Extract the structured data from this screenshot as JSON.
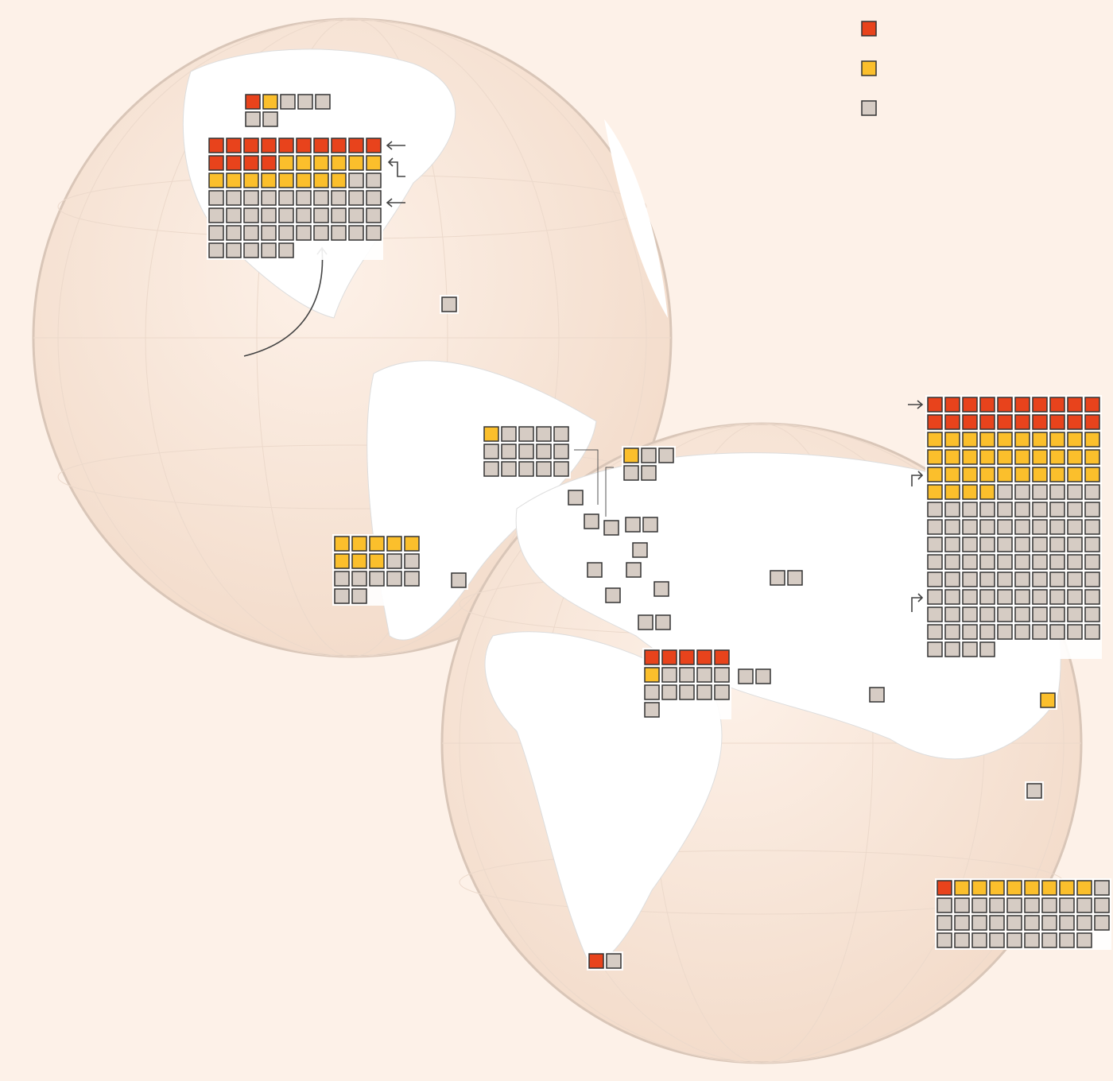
{
  "colors": {
    "red": "#e8431c",
    "yellow": "#fbbf2c",
    "gray": "#d6ccc4"
  },
  "groups": [
    {
      "red": 1,
      "yellow": 1,
      "gray": 5
    },
    {
      "red": 14,
      "yellow": 14,
      "gray": 37
    },
    {
      "red": 0,
      "yellow": 0,
      "gray": 1
    },
    {
      "red": 0,
      "yellow": 1,
      "gray": 14
    },
    {
      "red": 0,
      "yellow": 8,
      "gray": 9
    },
    {
      "red": 0,
      "yellow": 0,
      "gray": 1
    },
    {
      "red": 0,
      "yellow": 1,
      "gray": 4
    },
    {
      "red": 0,
      "yellow": 0,
      "gray": 1
    },
    {
      "red": 0,
      "yellow": 0,
      "gray": 1
    },
    {
      "red": 0,
      "yellow": 0,
      "gray": 1
    },
    {
      "red": 0,
      "yellow": 0,
      "gray": 2
    },
    {
      "red": 0,
      "yellow": 0,
      "gray": 1
    },
    {
      "red": 0,
      "yellow": 0,
      "gray": 1
    },
    {
      "red": 0,
      "yellow": 0,
      "gray": 1
    },
    {
      "red": 0,
      "yellow": 0,
      "gray": 1
    },
    {
      "red": 0,
      "yellow": 0,
      "gray": 1
    },
    {
      "red": 0,
      "yellow": 0,
      "gray": 2
    },
    {
      "red": 0,
      "yellow": 0,
      "gray": 2
    },
    {
      "red": 5,
      "yellow": 1,
      "gray": 10
    },
    {
      "red": 0,
      "yellow": 0,
      "gray": 2
    },
    {
      "red": 0,
      "yellow": 0,
      "gray": 1
    },
    {
      "red": 0,
      "yellow": 1,
      "gray": 0
    },
    {
      "red": 0,
      "yellow": 0,
      "gray": 1
    },
    {
      "red": 1,
      "yellow": 0,
      "gray": 1
    },
    {
      "red": 20,
      "yellow": 34,
      "gray": 90
    },
    {
      "red": 1,
      "yellow": 8,
      "gray": 30
    }
  ]
}
